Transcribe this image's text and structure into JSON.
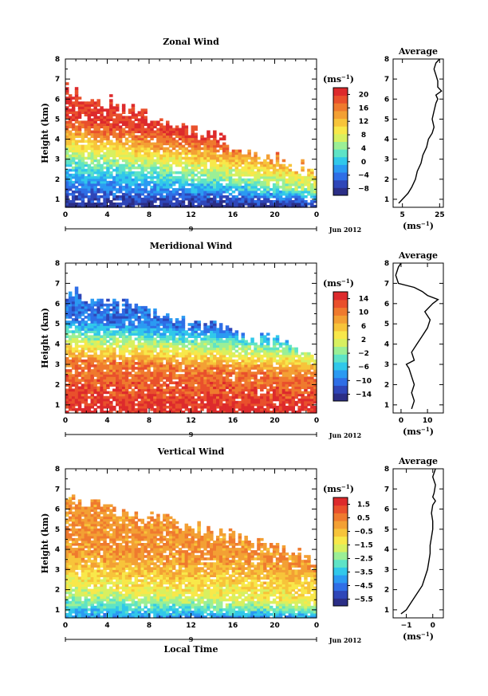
{
  "chart_data": [
    {
      "type": "heatmap",
      "title": "Zonal Wind",
      "ylabel": "Height (km)",
      "x_ticks": [
        "0",
        "4",
        "8",
        "12",
        "16",
        "20",
        "0"
      ],
      "y_ticks": [
        "1",
        "2",
        "3",
        "4",
        "5",
        "6",
        "7",
        "8"
      ],
      "ylim": [
        0.6,
        8.0
      ],
      "xlim": [
        0,
        24
      ],
      "day_label": "9",
      "date_label": "Jun 2012",
      "colorbar": {
        "unit": "(ms",
        "unit_sup": "−1",
        "unit_close": ")",
        "ticks": [
          "20",
          "16",
          "12",
          "8",
          "4",
          "0",
          "−4",
          "−8"
        ],
        "range": [
          -10,
          22
        ]
      },
      "field": {
        "top_start": 6.5,
        "top_end": 2.3,
        "base_start": 3.0,
        "base_end": 1.3,
        "low_value": -9,
        "high_value": 20,
        "base_value": 4
      },
      "average": {
        "title": "Average",
        "x_ticks": [
          "5",
          "25"
        ],
        "xlim": [
          0,
          27
        ],
        "xlabel": "(ms",
        "heights": [
          0.8,
          1.0,
          1.3,
          1.6,
          2.0,
          2.4,
          2.8,
          3.2,
          3.6,
          4.0,
          4.3,
          4.6,
          5.0,
          5.4,
          5.8,
          6.0,
          6.2,
          6.4,
          6.6,
          6.9,
          7.2,
          7.5,
          7.8,
          8.0
        ],
        "values": [
          3,
          5,
          8,
          10,
          12,
          13,
          15,
          16,
          18,
          19,
          21,
          22,
          21,
          22,
          23,
          24,
          23,
          26,
          24,
          24,
          23,
          22,
          23,
          25
        ]
      }
    },
    {
      "type": "heatmap",
      "title": "Meridional Wind",
      "ylabel": "Height (km)",
      "x_ticks": [
        "0",
        "4",
        "8",
        "12",
        "16",
        "20",
        "0"
      ],
      "y_ticks": [
        "1",
        "2",
        "3",
        "4",
        "5",
        "6",
        "7",
        "8"
      ],
      "ylim": [
        0.6,
        8.0
      ],
      "xlim": [
        0,
        24
      ],
      "day_label": "9",
      "date_label": "Jun 2012",
      "colorbar": {
        "unit": "(ms",
        "unit_sup": "−1",
        "unit_close": ")",
        "ticks": [
          "14",
          "10",
          "6",
          "2",
          "−2",
          "−6",
          "−10",
          "−14"
        ],
        "range": [
          -16,
          16
        ]
      },
      "field": {
        "top_start": 6.5,
        "top_end": 3.5,
        "base_start": 3.2,
        "base_end": 2.4,
        "low_value": 15,
        "high_value": -10,
        "base_value": 10
      },
      "average": {
        "title": "Average",
        "x_ticks": [
          "0",
          "10"
        ],
        "xlim": [
          -3,
          16
        ],
        "xlabel": "(ms",
        "heights": [
          0.8,
          1.2,
          1.6,
          2.0,
          2.4,
          2.8,
          3.0,
          3.2,
          3.6,
          4.0,
          4.4,
          4.8,
          5.2,
          5.6,
          6.0,
          6.2,
          6.4,
          6.6,
          6.8,
          7.0,
          7.4,
          7.8,
          8.0
        ],
        "values": [
          4,
          5,
          4,
          5,
          4,
          3,
          2,
          5,
          4,
          6,
          8,
          10,
          11,
          9,
          12,
          14,
          10,
          8,
          5,
          -1,
          -2,
          -1,
          0
        ]
      }
    },
    {
      "type": "heatmap",
      "title": "Vertical Wind",
      "ylabel": "Height (km)",
      "xlabel": "Local Time",
      "x_ticks": [
        "0",
        "4",
        "8",
        "12",
        "16",
        "20",
        "0"
      ],
      "y_ticks": [
        "1",
        "2",
        "3",
        "4",
        "5",
        "6",
        "7",
        "8"
      ],
      "ylim": [
        0.6,
        8.0
      ],
      "xlim": [
        0,
        24
      ],
      "day_label": "9",
      "date_label": "Jun 2012",
      "colorbar": {
        "unit": "(ms",
        "unit_sup": "−1",
        "unit_close": ")",
        "ticks": [
          "1.5",
          "0.5",
          "−0.5",
          "−1.5",
          "−2.5",
          "−3.5",
          "−4.5",
          "−5.5"
        ],
        "range": [
          -6,
          2
        ]
      },
      "field": {
        "top_start": 6.5,
        "top_end": 3.5,
        "base_start": 2.0,
        "base_end": 1.2,
        "low_value": -4,
        "high_value": 0.2,
        "base_value": -1.5
      },
      "average": {
        "title": "Average",
        "x_ticks": [
          "−1",
          "0"
        ],
        "xlim": [
          -1.5,
          0.4
        ],
        "xlabel": "(ms",
        "heights": [
          0.8,
          1.0,
          1.4,
          1.8,
          2.2,
          2.6,
          3.0,
          3.4,
          3.8,
          4.2,
          4.6,
          5.0,
          5.4,
          5.8,
          6.2,
          6.4,
          6.6,
          6.8,
          7.2,
          7.6,
          8.0
        ],
        "values": [
          -1.2,
          -1.0,
          -0.8,
          -0.6,
          -0.4,
          -0.3,
          -0.2,
          -0.15,
          -0.1,
          -0.1,
          -0.05,
          0.0,
          0.0,
          -0.05,
          0.0,
          0.1,
          0.0,
          0.05,
          0.1,
          0.0,
          0.1
        ]
      }
    }
  ]
}
